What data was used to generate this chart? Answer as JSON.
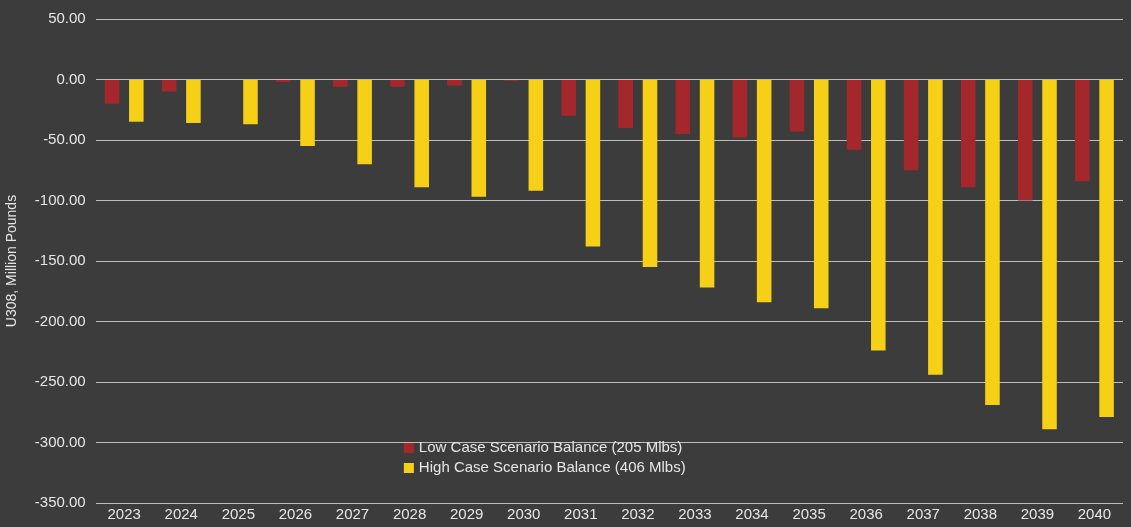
{
  "chart_data": {
    "type": "bar",
    "ylabel": "U308, Million Pounds",
    "categories": [
      "2023",
      "2024",
      "2025",
      "2026",
      "2027",
      "2028",
      "2029",
      "2030",
      "2031",
      "2032",
      "2033",
      "2034",
      "2035",
      "2036",
      "2037",
      "2038",
      "2039",
      "2040"
    ],
    "series": [
      {
        "name": "Low Case Scenario Balance (205 Mlbs)",
        "color": "#a4282b",
        "values": [
          -20,
          -10,
          0,
          -2,
          -6,
          -6,
          -5,
          -1,
          -30,
          -40,
          -45,
          -48,
          -43,
          -58,
          -75,
          -89,
          -100,
          -84
        ]
      },
      {
        "name": "High Case Scenario Balance (406 Mlbs)",
        "color": "#f5d016",
        "values": [
          -35,
          -36,
          -37,
          -55,
          -70,
          -89,
          -97,
          -92,
          -138,
          -155,
          -172,
          -184,
          -189,
          -224,
          -244,
          -269,
          -289,
          -279
        ]
      }
    ],
    "ylim": [
      -350,
      50
    ],
    "yticks": [
      {
        "value": 50,
        "label": "50.00"
      },
      {
        "value": 0,
        "label": "0.00"
      },
      {
        "value": -50,
        "label": "-50.00"
      },
      {
        "value": -100,
        "label": "-100.00"
      },
      {
        "value": -150,
        "label": "-150.00"
      },
      {
        "value": -200,
        "label": "-200.00"
      },
      {
        "value": -250,
        "label": "-250.00"
      },
      {
        "value": -300,
        "label": "-300.00"
      },
      {
        "value": -350,
        "label": "-350.00"
      }
    ],
    "grid": "y",
    "legend": "bottom"
  }
}
